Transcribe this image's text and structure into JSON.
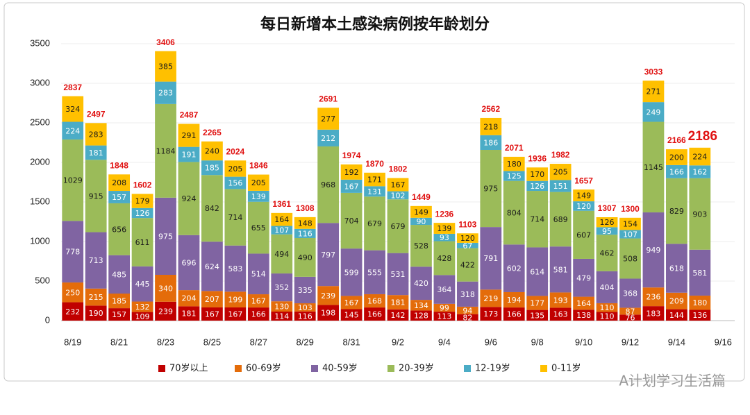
{
  "chart_data": {
    "type": "bar",
    "stacked": true,
    "title": "每日新增本土感染病例按年龄划分",
    "categories": [
      "8/19",
      null,
      "8/21",
      null,
      "8/23",
      null,
      "8/25",
      null,
      "8/27",
      null,
      "8/29",
      null,
      "8/31",
      null,
      "9/2",
      null,
      "9/4",
      null,
      "9/6",
      null,
      "9/8",
      null,
      "9/10",
      null,
      "9/12",
      null,
      "9/14",
      null,
      "9/16"
    ],
    "series": [
      {
        "name": "70岁以上",
        "color": "#c00000",
        "values": [
          232,
          190,
          157,
          109,
          239,
          181,
          167,
          167,
          166,
          114,
          116,
          198,
          145,
          166,
          142,
          128,
          113,
          82,
          173,
          166,
          135,
          163,
          138,
          110,
          76,
          183,
          144,
          136,
          null
        ]
      },
      {
        "name": "60-69岁",
        "color": "#e46c0a",
        "values": [
          250,
          215,
          185,
          132,
          340,
          204,
          207,
          199,
          167,
          130,
          103,
          239,
          167,
          168,
          181,
          134,
          99,
          94,
          219,
          194,
          177,
          193,
          164,
          110,
          87,
          236,
          209,
          180,
          null
        ]
      },
      {
        "name": "40-59岁",
        "color": "#8064a2",
        "values": [
          778,
          713,
          485,
          445,
          975,
          696,
          624,
          583,
          514,
          352,
          335,
          797,
          599,
          555,
          531,
          420,
          364,
          318,
          791,
          602,
          614,
          581,
          479,
          404,
          368,
          949,
          618,
          581,
          null
        ]
      },
      {
        "name": "20-39岁",
        "color": "#9bbb59",
        "values": [
          1029,
          915,
          656,
          611,
          1184,
          924,
          842,
          714,
          655,
          494,
          490,
          968,
          704,
          679,
          679,
          528,
          428,
          422,
          975,
          804,
          714,
          689,
          607,
          462,
          508,
          1145,
          829,
          903,
          null
        ]
      },
      {
        "name": "12-19岁",
        "color": "#4bacc6",
        "values": [
          224,
          181,
          157,
          126,
          283,
          191,
          185,
          156,
          139,
          107,
          116,
          212,
          167,
          131,
          102,
          90,
          93,
          67,
          186,
          125,
          126,
          151,
          120,
          95,
          107,
          249,
          166,
          162,
          null
        ]
      },
      {
        "name": "0-11岁",
        "color": "#ffc000",
        "values": [
          324,
          283,
          208,
          179,
          385,
          291,
          240,
          205,
          205,
          164,
          148,
          277,
          192,
          171,
          167,
          149,
          139,
          120,
          218,
          180,
          170,
          205,
          149,
          126,
          154,
          271,
          200,
          224,
          null
        ]
      }
    ],
    "totals": [
      2837,
      2497,
      1848,
      1602,
      3406,
      2487,
      2265,
      2024,
      1846,
      1361,
      1308,
      2691,
      1974,
      1870,
      1802,
      1449,
      1236,
      1103,
      2562,
      2071,
      1936,
      1982,
      1657,
      1307,
      1300,
      3033,
      2166,
      2186,
      null
    ],
    "ylim": [
      0,
      3500
    ],
    "yticks": [
      0,
      500,
      1000,
      1500,
      2000,
      2500,
      3000,
      3500
    ],
    "grid": true,
    "watermark": "A计划学习生活篇"
  }
}
